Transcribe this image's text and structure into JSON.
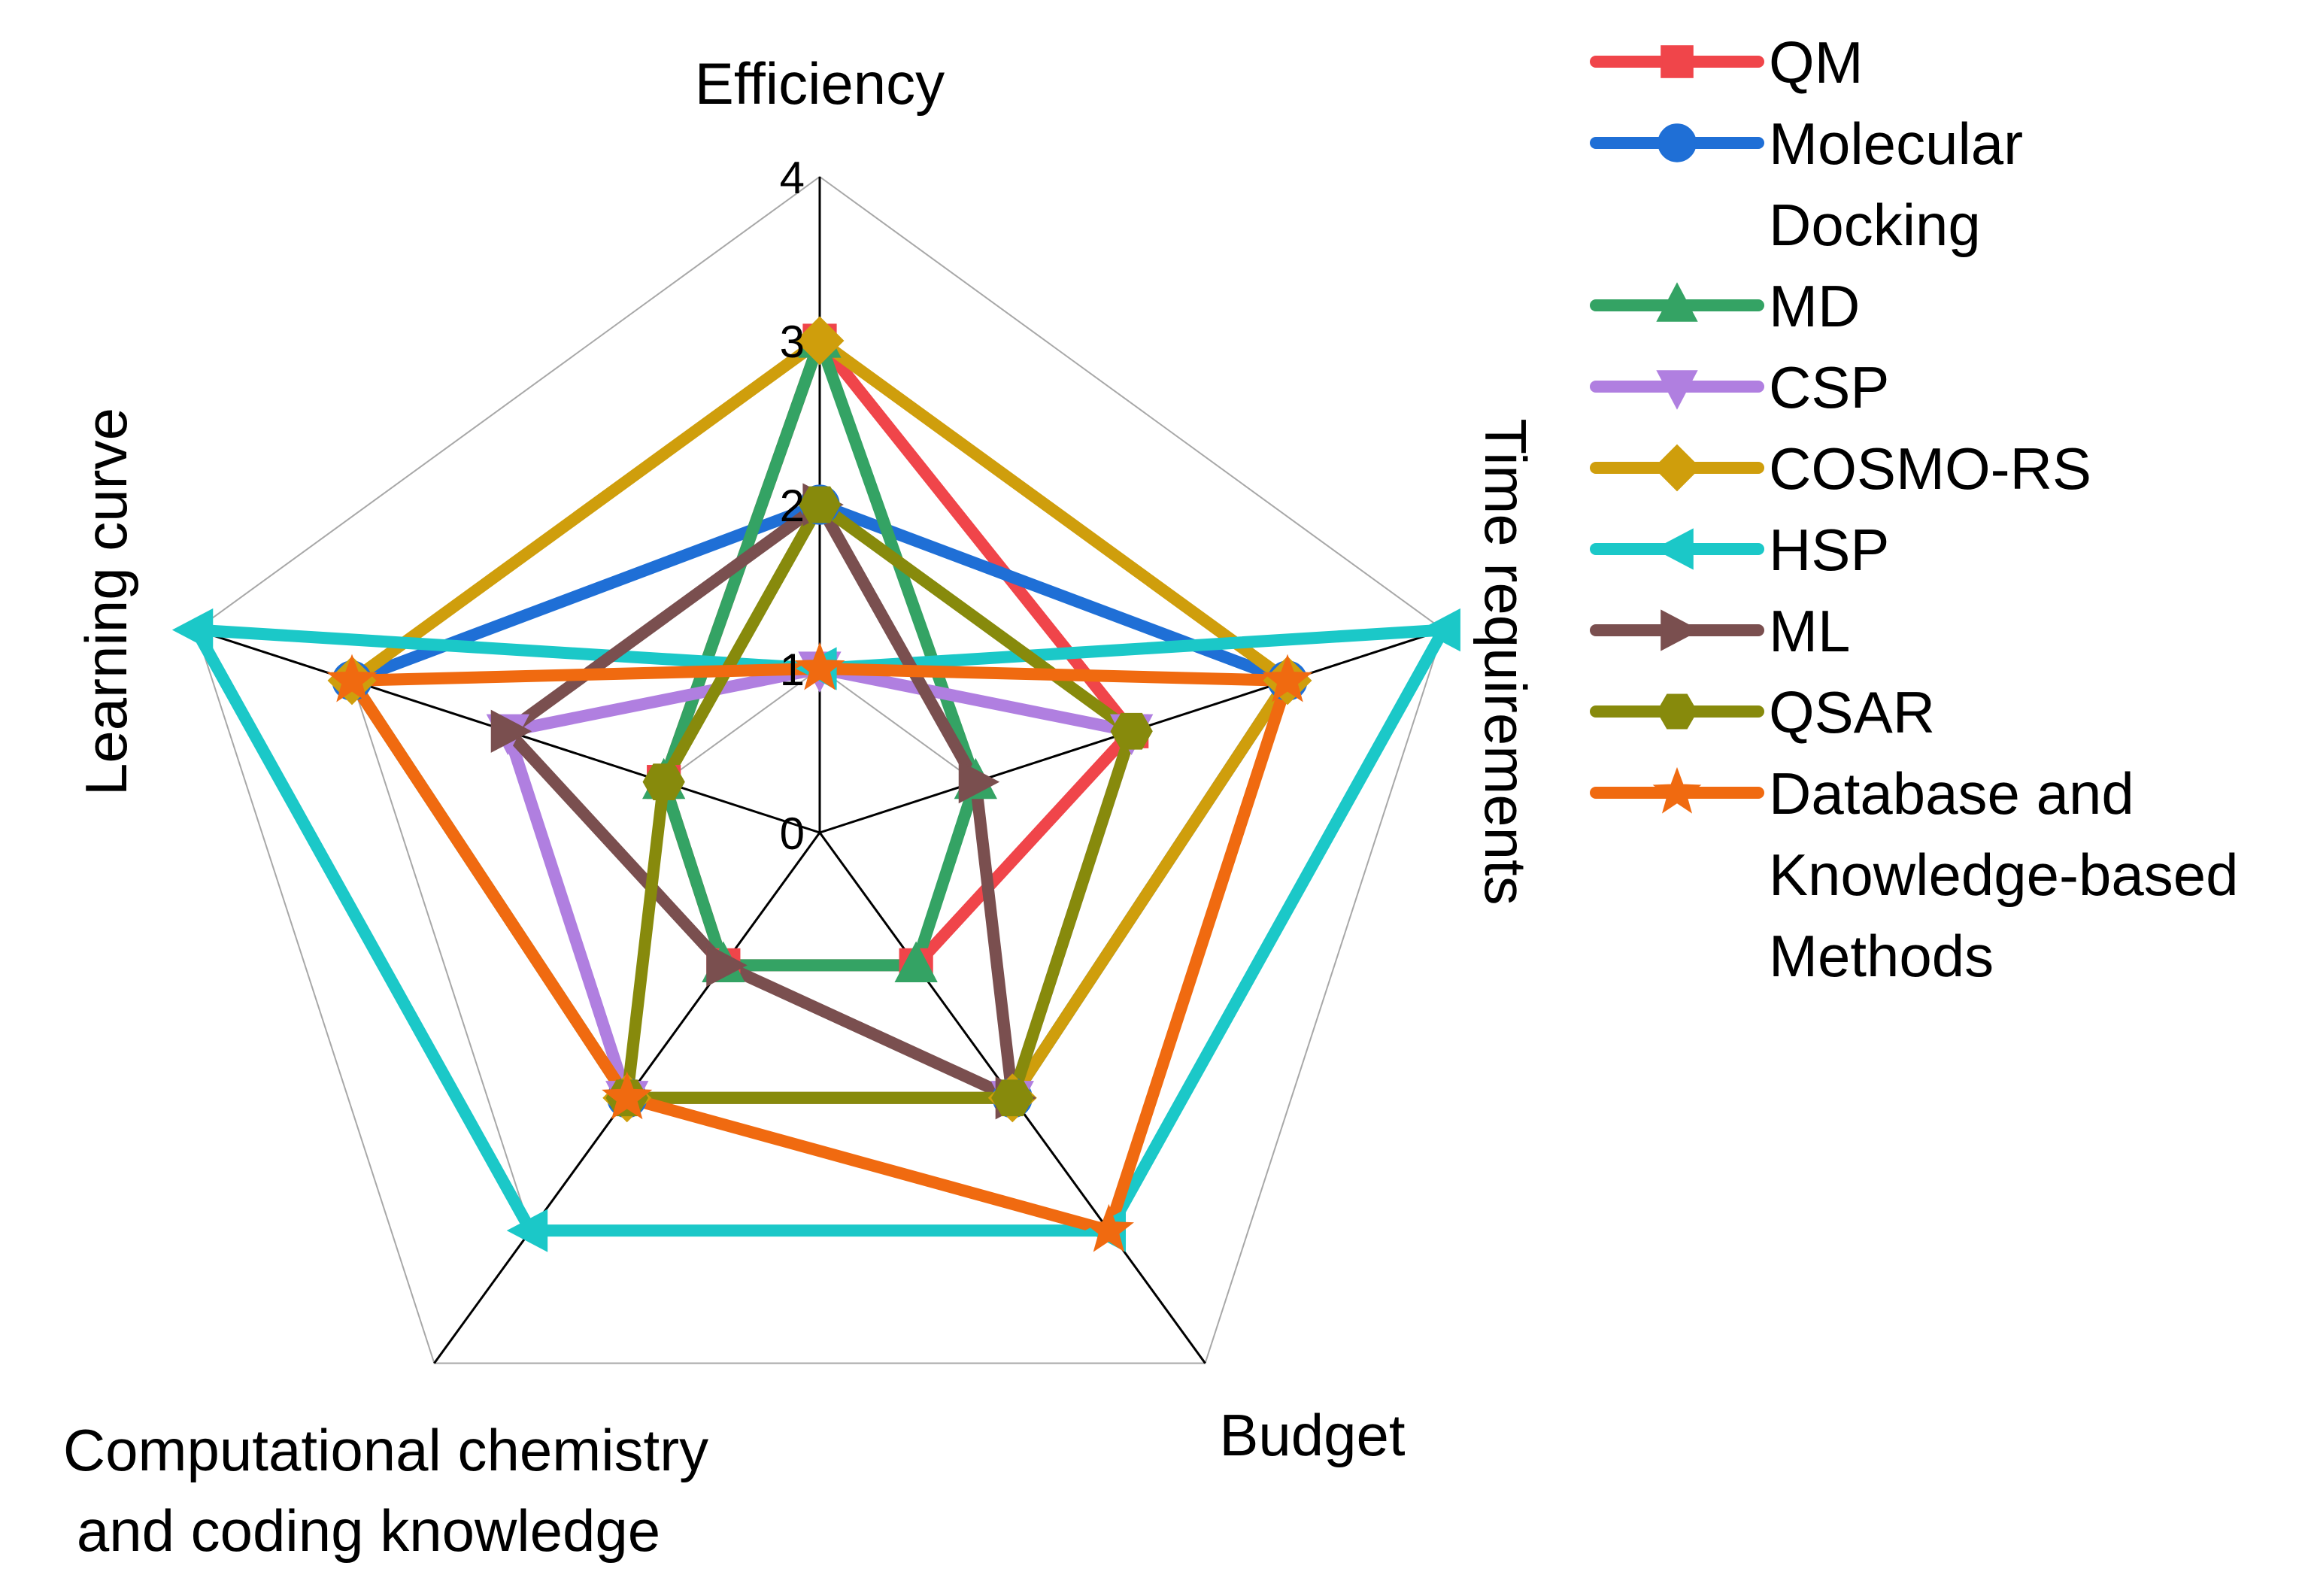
{
  "chart_data": {
    "type": "radar",
    "axes": [
      "Efficiency",
      "Time requirements",
      "Budget",
      "Computational chemistry and coding knowledge",
      "Learning curve"
    ],
    "axis_titles": {
      "efficiency": "Efficiency",
      "time": "Time requirements",
      "budget": "Budget",
      "comp_line1": "Computational chemistry",
      "comp_line2": "and coding knowledge",
      "learning": "Learning curve"
    },
    "range": [
      0,
      4
    ],
    "ticks": [
      "0",
      "1",
      "2",
      "3",
      "4"
    ],
    "series": [
      {
        "name": "QM",
        "color": "#f0454a",
        "marker": "square",
        "values": [
          3,
          2,
          1,
          1,
          1
        ]
      },
      {
        "name": "Molecular Docking",
        "color": "#1f6fd6",
        "marker": "circle",
        "values": [
          2,
          3,
          2,
          2,
          3
        ]
      },
      {
        "name": "MD",
        "color": "#34a364",
        "marker": "triangle-up",
        "values": [
          3,
          1,
          1,
          1,
          1
        ]
      },
      {
        "name": "CSP",
        "color": "#b07fe0",
        "marker": "triangle-down",
        "values": [
          1,
          2,
          2,
          2,
          2
        ]
      },
      {
        "name": "COSMO-RS",
        "color": "#cf9e0c",
        "marker": "diamond",
        "values": [
          3,
          3,
          2,
          2,
          3
        ]
      },
      {
        "name": "HSP",
        "color": "#1bc8c8",
        "marker": "triangle-left",
        "values": [
          1,
          4,
          3,
          3,
          4
        ]
      },
      {
        "name": "ML",
        "color": "#7a4f4f",
        "marker": "triangle-right",
        "values": [
          2,
          1,
          2,
          1,
          2
        ]
      },
      {
        "name": "QSAR",
        "color": "#878a0c",
        "marker": "hexagon",
        "values": [
          2,
          2,
          2,
          2,
          1
        ]
      },
      {
        "name": "Database and Knowledge-based Methods",
        "color": "#f06a10",
        "marker": "star",
        "values": [
          1,
          3,
          3,
          2,
          3
        ]
      }
    ],
    "legend": [
      {
        "lines": [
          "QM"
        ]
      },
      {
        "lines": [
          "Molecular",
          "Docking"
        ]
      },
      {
        "lines": [
          "MD"
        ]
      },
      {
        "lines": [
          "CSP"
        ]
      },
      {
        "lines": [
          "COSMO-RS"
        ]
      },
      {
        "lines": [
          "HSP"
        ]
      },
      {
        "lines": [
          "ML"
        ]
      },
      {
        "lines": [
          "QSAR"
        ]
      },
      {
        "lines": [
          "Database and",
          "Knowledge-based",
          "Methods"
        ]
      }
    ],
    "legend_position": "right"
  }
}
